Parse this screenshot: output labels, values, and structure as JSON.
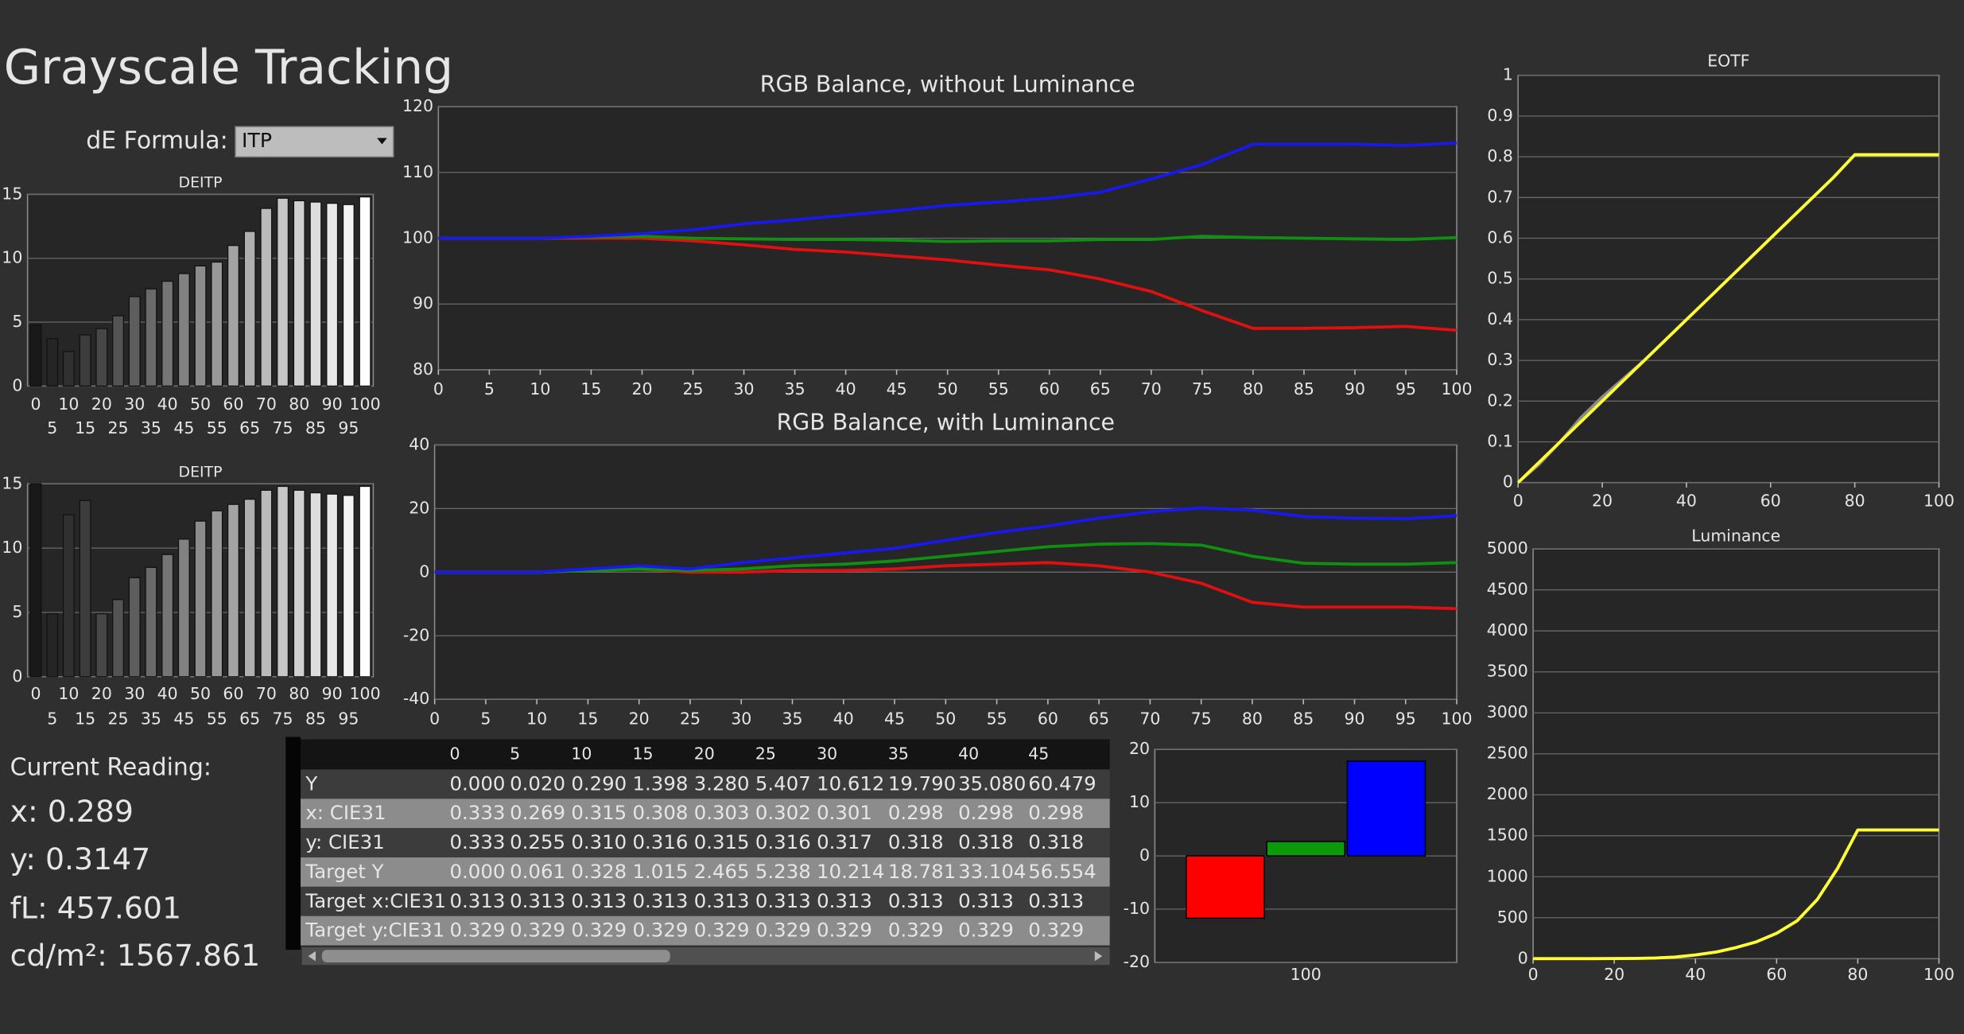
{
  "title": "Grayscale Tracking",
  "formula": {
    "label": "dE Formula:",
    "value": "ITP"
  },
  "chart_data": [
    {
      "type": "bar",
      "title": "DEITP",
      "categories": [
        0,
        5,
        10,
        15,
        20,
        25,
        30,
        35,
        40,
        45,
        50,
        55,
        60,
        65,
        70,
        75,
        80,
        85,
        90,
        95,
        100
      ],
      "values": [
        4.8,
        3.7,
        2.7,
        4.0,
        4.5,
        5.5,
        7.0,
        7.6,
        8.2,
        8.8,
        9.4,
        9.7,
        11.0,
        12.1,
        13.9,
        14.7,
        14.5,
        14.4,
        14.3,
        14.2,
        14.8
      ],
      "ylim": [
        0,
        15
      ],
      "yticks": [
        0,
        5,
        10,
        15
      ],
      "grid": true
    },
    {
      "type": "bar",
      "title": "DEITP",
      "categories": [
        0,
        5,
        10,
        15,
        20,
        25,
        30,
        35,
        40,
        45,
        50,
        55,
        60,
        65,
        70,
        75,
        80,
        85,
        90,
        95,
        100
      ],
      "values": [
        15,
        4.9,
        12.6,
        13.7,
        4.9,
        6.0,
        7.7,
        8.5,
        9.5,
        10.7,
        12.1,
        12.9,
        13.4,
        13.8,
        14.5,
        14.8,
        14.5,
        14.3,
        14.2,
        14.1,
        14.8
      ],
      "ylim": [
        0,
        15
      ],
      "yticks": [
        0,
        5,
        10,
        15
      ],
      "grid": true
    },
    {
      "type": "line",
      "title": "RGB Balance, without Luminance",
      "x": [
        0,
        5,
        10,
        15,
        20,
        25,
        30,
        35,
        40,
        45,
        50,
        55,
        60,
        65,
        70,
        75,
        80,
        85,
        90,
        95,
        100
      ],
      "series": [
        {
          "color": "#e01010",
          "values": [
            100,
            100,
            100,
            100,
            100,
            99.6,
            99,
            98.3,
            97.9,
            97.3,
            96.7,
            95.9,
            95.2,
            93.8,
            91.9,
            89,
            86.3,
            86.3,
            86.4,
            86.6,
            86
          ]
        },
        {
          "color": "#109010",
          "values": [
            100,
            100,
            100,
            100.2,
            100.3,
            100,
            99.9,
            99.8,
            99.8,
            99.7,
            99.5,
            99.6,
            99.6,
            99.8,
            99.8,
            100.3,
            100.1,
            100,
            99.9,
            99.8,
            100.1
          ]
        },
        {
          "color": "#1818f0",
          "values": [
            100,
            100,
            100,
            100.3,
            100.7,
            101.3,
            102.2,
            102.8,
            103.5,
            104.2,
            105,
            105.5,
            106.1,
            107,
            109,
            111.2,
            114.3,
            114.3,
            114.3,
            114.1,
            114.5
          ]
        }
      ],
      "xlim": [
        0,
        100
      ],
      "xticks": [
        0,
        5,
        10,
        15,
        20,
        25,
        30,
        35,
        40,
        45,
        50,
        55,
        60,
        65,
        70,
        75,
        80,
        85,
        90,
        95,
        100
      ],
      "ylim": [
        80,
        120
      ],
      "yticks": [
        80,
        90,
        100,
        110,
        120
      ],
      "grid": true
    },
    {
      "type": "line",
      "title": "RGB Balance, with Luminance",
      "x": [
        0,
        5,
        10,
        15,
        20,
        25,
        30,
        35,
        40,
        45,
        50,
        55,
        60,
        65,
        70,
        75,
        80,
        85,
        90,
        95,
        100
      ],
      "series": [
        {
          "color": "#e01010",
          "values": [
            0,
            0,
            0,
            0.5,
            1,
            0,
            0,
            0.5,
            0.5,
            1,
            2,
            2.5,
            3,
            2,
            0,
            -3.5,
            -9.5,
            -11,
            -11,
            -11,
            -11.5
          ]
        },
        {
          "color": "#109010",
          "values": [
            0,
            0,
            0,
            0.5,
            1,
            0.5,
            1,
            2,
            2.5,
            3.5,
            5,
            6.5,
            8,
            8.8,
            9,
            8.5,
            5,
            2.8,
            2.5,
            2.5,
            3
          ]
        },
        {
          "color": "#1818f0",
          "values": [
            0,
            0,
            0,
            1,
            2,
            1,
            3,
            4.5,
            6,
            7.5,
            10,
            12.5,
            14.5,
            17,
            19,
            20.2,
            19.5,
            17.5,
            17,
            16.8,
            17.8
          ]
        }
      ],
      "xlim": [
        0,
        100
      ],
      "xticks": [
        0,
        5,
        10,
        15,
        20,
        25,
        30,
        35,
        40,
        45,
        50,
        55,
        60,
        65,
        70,
        75,
        80,
        85,
        90,
        95,
        100
      ],
      "ylim": [
        -40,
        40
      ],
      "yticks": [
        -40,
        -20,
        0,
        20,
        40
      ],
      "grid": true
    },
    {
      "type": "line",
      "title": "EOTF",
      "x": [
        0,
        5,
        10,
        15,
        20,
        25,
        30,
        35,
        40,
        45,
        50,
        55,
        60,
        65,
        70,
        75,
        80,
        85,
        90,
        95,
        100
      ],
      "series": [
        {
          "color": "#8a8a8a",
          "values": [
            0,
            0.045,
            0.1,
            0.16,
            0.21,
            0.255,
            0.3,
            0.35,
            0.4,
            0.45,
            0.5,
            0.55,
            0.6,
            0.65,
            0.7,
            0.75,
            0.805,
            0.805,
            0.805,
            0.805,
            0.805
          ]
        },
        {
          "color": "#ffff33",
          "values": [
            0,
            0.05,
            0.1,
            0.15,
            0.2,
            0.25,
            0.3,
            0.35,
            0.4,
            0.45,
            0.5,
            0.55,
            0.6,
            0.65,
            0.7,
            0.75,
            0.805,
            0.805,
            0.805,
            0.805,
            0.805
          ]
        }
      ],
      "xlim": [
        0,
        100
      ],
      "xticks": [
        0,
        20,
        40,
        60,
        80,
        100
      ],
      "ylim": [
        0,
        1
      ],
      "yticks": [
        0,
        0.1,
        0.2,
        0.3,
        0.4,
        0.5,
        0.6,
        0.7,
        0.8,
        0.9,
        1
      ],
      "grid": true
    },
    {
      "type": "line",
      "title": "Luminance",
      "x": [
        0,
        5,
        10,
        15,
        20,
        25,
        30,
        35,
        40,
        45,
        50,
        55,
        60,
        65,
        70,
        75,
        80,
        85,
        90,
        95,
        100
      ],
      "series": [
        {
          "color": "#8a8a8a",
          "values": [
            0,
            0,
            0,
            0,
            1,
            3,
            8,
            20,
            45,
            80,
            135,
            205,
            310,
            460,
            720,
            1100,
            1570,
            1570,
            1570,
            1570,
            1570
          ]
        },
        {
          "color": "#ffff33",
          "values": [
            0,
            0,
            0,
            0,
            1,
            3,
            8,
            20,
            45,
            80,
            135,
            205,
            310,
            460,
            720,
            1100,
            1570,
            1570,
            1570,
            1570,
            1570
          ]
        }
      ],
      "xlim": [
        0,
        100
      ],
      "xticks": [
        0,
        20,
        40,
        60,
        80,
        100
      ],
      "ylim": [
        0,
        5000
      ],
      "yticks": [
        0,
        500,
        1000,
        1500,
        2000,
        2500,
        3000,
        3500,
        4000,
        4500,
        5000
      ],
      "grid": true
    },
    {
      "type": "bar",
      "categories": [
        "100"
      ],
      "series": [
        {
          "color": "#ff0000",
          "values": [
            -11.7
          ]
        },
        {
          "color": "#0c9a0c",
          "values": [
            2.7
          ]
        },
        {
          "color": "#0000ff",
          "values": [
            17.8
          ]
        }
      ],
      "ylim": [
        -20,
        20
      ],
      "yticks": [
        -20,
        -10,
        0,
        10,
        20
      ],
      "grid": true
    }
  ],
  "reading": {
    "title": "Current Reading:",
    "lines": [
      "x: 0.289",
      "y: 0.3147",
      "fL: 457.601",
      "cd/m²: 1567.861"
    ]
  },
  "table": {
    "columns": [
      "0",
      "5",
      "10",
      "15",
      "20",
      "25",
      "30",
      "35",
      "40",
      "45"
    ],
    "rows": [
      [
        "Y",
        "0.000",
        "0.020",
        "0.290",
        "1.398",
        "3.280",
        "5.407",
        "10.612",
        "19.790",
        "35.080",
        "60.479"
      ],
      [
        "x: CIE31",
        "0.333",
        "0.269",
        "0.315",
        "0.308",
        "0.303",
        "0.302",
        "0.301",
        "0.298",
        "0.298",
        "0.298"
      ],
      [
        "y: CIE31",
        "0.333",
        "0.255",
        "0.310",
        "0.316",
        "0.315",
        "0.316",
        "0.317",
        "0.318",
        "0.318",
        "0.318"
      ],
      [
        "Target Y",
        "0.000",
        "0.061",
        "0.328",
        "1.015",
        "2.465",
        "5.238",
        "10.214",
        "18.781",
        "33.104",
        "56.554"
      ],
      [
        "Target x:CIE31",
        "0.313",
        "0.313",
        "0.313",
        "0.313",
        "0.313",
        "0.313",
        "0.313",
        "0.313",
        "0.313",
        "0.313"
      ],
      [
        "Target y:CIE31",
        "0.329",
        "0.329",
        "0.329",
        "0.329",
        "0.329",
        "0.329",
        "0.329",
        "0.329",
        "0.329",
        "0.329"
      ]
    ]
  }
}
